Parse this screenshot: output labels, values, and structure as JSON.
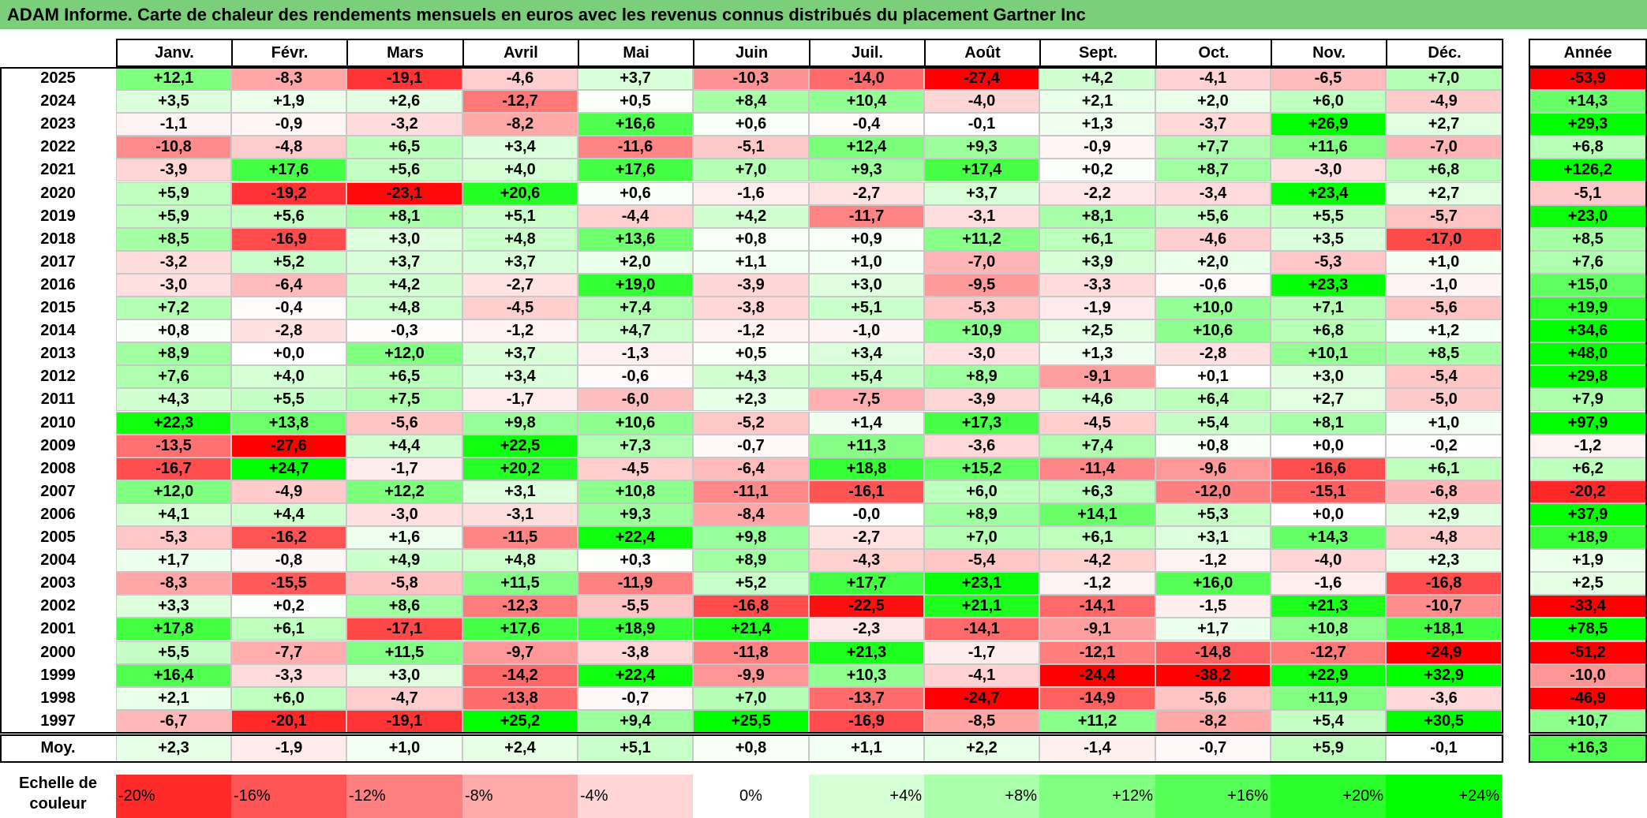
{
  "title": "ADAM Informe. Carte de chaleur des rendements mensuels en euros avec les revenus connus distribués du placement Gartner Inc",
  "colors": {
    "title_bg": "#7ccf7a",
    "negative": "#ff0000",
    "neutral": "#ffffff",
    "positive": "#00ff00"
  },
  "chart_data": {
    "type": "heatmap",
    "title": "ADAM Informe. Carte de chaleur des rendements mensuels en euros avec les revenus connus distribués du placement Gartner Inc",
    "columns": [
      "Janv.",
      "Févr.",
      "Mars",
      "Avril",
      "Mai",
      "Juin",
      "Juil.",
      "Août",
      "Sept.",
      "Oct.",
      "Nov.",
      "Déc."
    ],
    "annual_header": "Année",
    "rows": [
      {
        "year": "2025",
        "values": [
          "+12,1",
          "-8,3",
          "-19,1",
          "-4,6",
          "+3,7",
          "-10,3",
          "-14,0",
          "-27,4",
          "+4,2",
          "-4,1",
          "-6,5",
          "+7,0"
        ],
        "annual": "-53,9"
      },
      {
        "year": "2024",
        "values": [
          "+3,5",
          "+1,9",
          "+2,6",
          "-12,7",
          "+0,5",
          "+8,4",
          "+10,4",
          "-4,0",
          "+2,1",
          "+2,0",
          "+6,0",
          "-4,9"
        ],
        "annual": "+14,3"
      },
      {
        "year": "2023",
        "values": [
          "-1,1",
          "-0,9",
          "-3,2",
          "-8,2",
          "+16,6",
          "+0,6",
          "-0,4",
          "-0,1",
          "+1,3",
          "-3,7",
          "+26,9",
          "+2,7"
        ],
        "annual": "+29,3"
      },
      {
        "year": "2022",
        "values": [
          "-10,8",
          "-4,8",
          "+6,5",
          "+3,4",
          "-11,6",
          "-5,1",
          "+12,4",
          "+9,3",
          "-0,9",
          "+7,7",
          "+11,6",
          "-7,0"
        ],
        "annual": "+6,8"
      },
      {
        "year": "2021",
        "values": [
          "-3,9",
          "+17,6",
          "+5,6",
          "+4,0",
          "+17,6",
          "+7,0",
          "+9,3",
          "+17,4",
          "+0,2",
          "+8,7",
          "-3,0",
          "+6,8"
        ],
        "annual": "+126,2"
      },
      {
        "year": "2020",
        "values": [
          "+5,9",
          "-19,2",
          "-23,1",
          "+20,6",
          "+0,6",
          "-1,6",
          "-2,7",
          "+3,7",
          "-2,2",
          "-3,4",
          "+23,4",
          "+2,7"
        ],
        "annual": "-5,1"
      },
      {
        "year": "2019",
        "values": [
          "+5,9",
          "+5,6",
          "+8,1",
          "+5,1",
          "-4,4",
          "+4,2",
          "-11,7",
          "-3,1",
          "+8,1",
          "+5,6",
          "+5,5",
          "-5,7"
        ],
        "annual": "+23,0"
      },
      {
        "year": "2018",
        "values": [
          "+8,5",
          "-16,9",
          "+3,0",
          "+4,8",
          "+13,6",
          "+0,8",
          "+0,9",
          "+11,2",
          "+6,1",
          "-4,6",
          "+3,5",
          "-17,0"
        ],
        "annual": "+8,5"
      },
      {
        "year": "2017",
        "values": [
          "-3,2",
          "+5,2",
          "+3,7",
          "+3,7",
          "+2,0",
          "+1,1",
          "+1,0",
          "-7,0",
          "+3,9",
          "+2,0",
          "-5,3",
          "+1,0"
        ],
        "annual": "+7,6"
      },
      {
        "year": "2016",
        "values": [
          "-3,0",
          "-6,4",
          "+4,2",
          "-2,7",
          "+19,0",
          "-3,9",
          "+3,0",
          "-9,5",
          "-3,3",
          "-0,6",
          "+23,3",
          "-1,0"
        ],
        "annual": "+15,0"
      },
      {
        "year": "2015",
        "values": [
          "+7,2",
          "-0,4",
          "+4,8",
          "-4,5",
          "+7,4",
          "-3,8",
          "+5,1",
          "-5,3",
          "-1,9",
          "+10,0",
          "+7,1",
          "-5,6"
        ],
        "annual": "+19,9"
      },
      {
        "year": "2014",
        "values": [
          "+0,8",
          "-2,8",
          "-0,3",
          "-1,2",
          "+4,7",
          "-1,2",
          "-1,0",
          "+10,9",
          "+2,5",
          "+10,6",
          "+6,8",
          "+1,2"
        ],
        "annual": "+34,6"
      },
      {
        "year": "2013",
        "values": [
          "+8,9",
          "+0,0",
          "+12,0",
          "+3,7",
          "-1,3",
          "+0,5",
          "+3,4",
          "-3,0",
          "+1,3",
          "-2,8",
          "+10,1",
          "+8,5"
        ],
        "annual": "+48,0"
      },
      {
        "year": "2012",
        "values": [
          "+7,6",
          "+4,0",
          "+6,5",
          "+3,4",
          "-0,6",
          "+4,3",
          "+5,4",
          "+8,9",
          "-9,1",
          "+0,1",
          "+3,0",
          "-5,4"
        ],
        "annual": "+29,8"
      },
      {
        "year": "2011",
        "values": [
          "+4,3",
          "+5,5",
          "+7,5",
          "-1,7",
          "-6,0",
          "+2,3",
          "-7,5",
          "-3,9",
          "+4,6",
          "+6,4",
          "+2,7",
          "-5,0"
        ],
        "annual": "+7,9"
      },
      {
        "year": "2010",
        "values": [
          "+22,3",
          "+13,8",
          "-5,6",
          "+9,8",
          "+10,6",
          "-5,2",
          "+1,4",
          "+17,3",
          "-4,5",
          "+5,4",
          "+8,1",
          "+1,0"
        ],
        "annual": "+97,9"
      },
      {
        "year": "2009",
        "values": [
          "-13,5",
          "-27,6",
          "+4,4",
          "+22,5",
          "+7,3",
          "-0,7",
          "+11,3",
          "-3,6",
          "+7,4",
          "+0,8",
          "+0,0",
          "-0,2"
        ],
        "annual": "-1,2"
      },
      {
        "year": "2008",
        "values": [
          "-16,7",
          "+24,7",
          "-1,7",
          "+20,2",
          "-4,5",
          "-6,4",
          "+18,8",
          "+15,2",
          "-11,4",
          "-9,6",
          "-16,6",
          "+6,1"
        ],
        "annual": "+6,2"
      },
      {
        "year": "2007",
        "values": [
          "+12,0",
          "-4,9",
          "+12,2",
          "+3,1",
          "+10,8",
          "-11,1",
          "-16,1",
          "+6,0",
          "+6,3",
          "-12,0",
          "-15,1",
          "-6,8"
        ],
        "annual": "-20,2"
      },
      {
        "year": "2006",
        "values": [
          "+4,1",
          "+4,4",
          "-3,0",
          "-3,1",
          "+9,3",
          "-8,4",
          "-0,0",
          "+8,9",
          "+14,1",
          "+5,3",
          "+0,0",
          "+2,9"
        ],
        "annual": "+37,9"
      },
      {
        "year": "2005",
        "values": [
          "-5,3",
          "-16,2",
          "+1,6",
          "-11,5",
          "+22,4",
          "+9,8",
          "-2,7",
          "+7,0",
          "+6,1",
          "+3,1",
          "+14,3",
          "-4,8"
        ],
        "annual": "+18,9"
      },
      {
        "year": "2004",
        "values": [
          "+1,7",
          "-0,8",
          "+4,9",
          "+4,8",
          "+0,3",
          "+8,9",
          "-4,3",
          "-5,4",
          "-4,2",
          "-1,2",
          "-4,0",
          "+2,3"
        ],
        "annual": "+1,9"
      },
      {
        "year": "2003",
        "values": [
          "-8,3",
          "-15,5",
          "-5,8",
          "+11,5",
          "-11,9",
          "+5,2",
          "+17,7",
          "+23,1",
          "-1,2",
          "+16,0",
          "-1,6",
          "-16,8"
        ],
        "annual": "+2,5"
      },
      {
        "year": "2002",
        "values": [
          "+3,3",
          "+0,2",
          "+8,6",
          "-12,3",
          "-5,5",
          "-16,8",
          "-22,5",
          "+21,1",
          "-14,1",
          "-1,5",
          "+21,3",
          "-10,7"
        ],
        "annual": "-33,4"
      },
      {
        "year": "2001",
        "values": [
          "+17,8",
          "+6,1",
          "-17,1",
          "+17,6",
          "+18,9",
          "+21,4",
          "-2,3",
          "-14,1",
          "-9,1",
          "+1,7",
          "+10,8",
          "+18,1"
        ],
        "annual": "+78,5"
      },
      {
        "year": "2000",
        "values": [
          "+5,5",
          "-7,7",
          "+11,5",
          "-9,7",
          "-3,8",
          "-11,8",
          "+21,3",
          "-1,7",
          "-12,1",
          "-14,8",
          "-12,7",
          "-24,9"
        ],
        "annual": "-51,2"
      },
      {
        "year": "1999",
        "values": [
          "+16,4",
          "-3,3",
          "+3,0",
          "-14,2",
          "+22,4",
          "-9,9",
          "+10,3",
          "-4,1",
          "-24,4",
          "-38,2",
          "+22,9",
          "+32,9"
        ],
        "annual": "-10,0"
      },
      {
        "year": "1998",
        "values": [
          "+2,1",
          "+6,0",
          "-4,7",
          "-13,8",
          "-0,7",
          "+7,0",
          "-13,7",
          "-24,7",
          "-14,9",
          "-5,6",
          "+11,9",
          "-3,6"
        ],
        "annual": "-46,9"
      },
      {
        "year": "1997",
        "values": [
          "-6,7",
          "-20,1",
          "-19,1",
          "+25,2",
          "+9,4",
          "+25,5",
          "-16,9",
          "-8,5",
          "+11,2",
          "-8,2",
          "+5,4",
          "+30,5"
        ],
        "annual": "+10,7"
      }
    ],
    "average": {
      "label": "Moy.",
      "values": [
        "+2,3",
        "-1,9",
        "+1,0",
        "+2,4",
        "+5,1",
        "+0,8",
        "+1,1",
        "+2,2",
        "-1,4",
        "-0,7",
        "+5,9",
        "-0,1"
      ],
      "annual": "+16,3"
    },
    "color_scale": {
      "label": "Echelle de couleur",
      "stops": [
        "-20%",
        "-16%",
        "-12%",
        "-8%",
        "-4%",
        "0%",
        "+4%",
        "+8%",
        "+12%",
        "+16%",
        "+20%",
        "+24%"
      ],
      "range": [
        -24,
        24
      ]
    }
  }
}
